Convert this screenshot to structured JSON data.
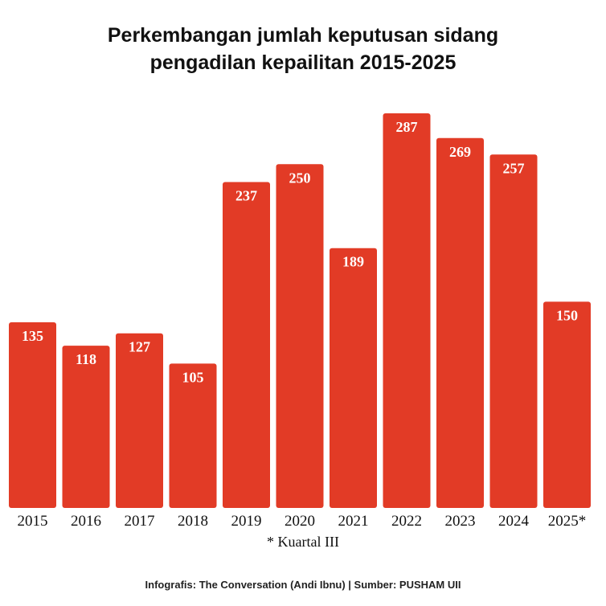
{
  "title_lines": [
    "Perkembangan jumlah keputusan sidang",
    "pengadilan kepailitan 2015-2025"
  ],
  "footnote": "* Kuartal III",
  "credit": "Infografis: The Conversation (Andi Ibnu) | Sumber: PUSHAM UII",
  "colors": {
    "bar": "#e23b26",
    "bar_label": "#ffffff",
    "axis_text": "#111111"
  },
  "chart_data": {
    "type": "bar",
    "title": "Perkembangan jumlah keputusan sidang pengadilan kepailitan 2015-2025",
    "categories": [
      "2015",
      "2016",
      "2017",
      "2018",
      "2019",
      "2020",
      "2021",
      "2022",
      "2023",
      "2024",
      "2025*"
    ],
    "values": [
      135,
      118,
      127,
      105,
      237,
      250,
      189,
      287,
      269,
      257,
      150
    ],
    "value_labels": [
      "135",
      "118",
      "127",
      "105",
      "237",
      "250",
      "189",
      "287",
      "269",
      "257",
      "150"
    ],
    "xlabel": "",
    "ylabel": "",
    "ylim": [
      0,
      287
    ],
    "grid": false,
    "data_labels": "inside-top"
  }
}
